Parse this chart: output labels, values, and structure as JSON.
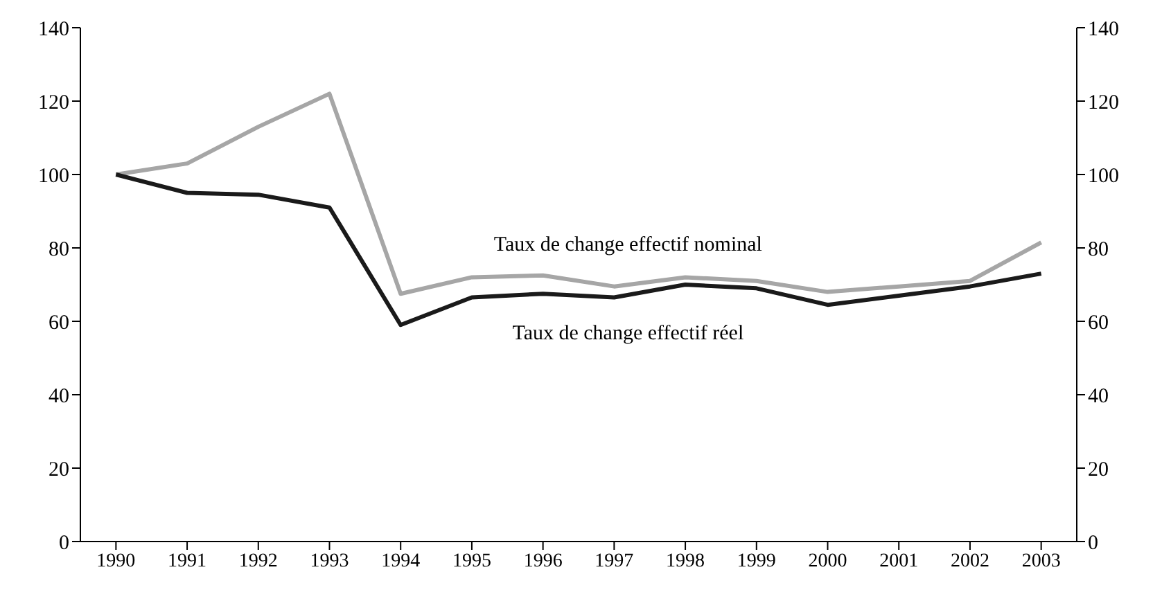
{
  "chart_data": {
    "type": "line",
    "categories": [
      "1990",
      "1991",
      "1992",
      "1993",
      "1994",
      "1995",
      "1996",
      "1997",
      "1998",
      "1999",
      "2000",
      "2001",
      "2002",
      "2003"
    ],
    "series": [
      {
        "name": "Taux de change effectif nominal",
        "color": "#a6a6a6",
        "values": [
          100,
          103,
          113,
          122,
          67.5,
          72,
          72.5,
          69.5,
          72,
          71,
          68,
          69.5,
          71,
          81.5
        ]
      },
      {
        "name": "Taux de change effectif réel",
        "color": "#1a1a1a",
        "values": [
          100,
          95,
          94.5,
          91,
          59,
          66.5,
          67.5,
          66.5,
          70,
          69,
          64.5,
          67,
          69.5,
          73
        ]
      }
    ],
    "ylim": [
      0,
      140
    ],
    "yticks": [
      0,
      20,
      40,
      60,
      80,
      100,
      120,
      140
    ],
    "y2lim": [
      0,
      140
    ],
    "y2ticks": [
      0,
      20,
      40,
      60,
      80,
      100,
      120,
      140
    ],
    "marker": "none",
    "line_style": "solid"
  }
}
